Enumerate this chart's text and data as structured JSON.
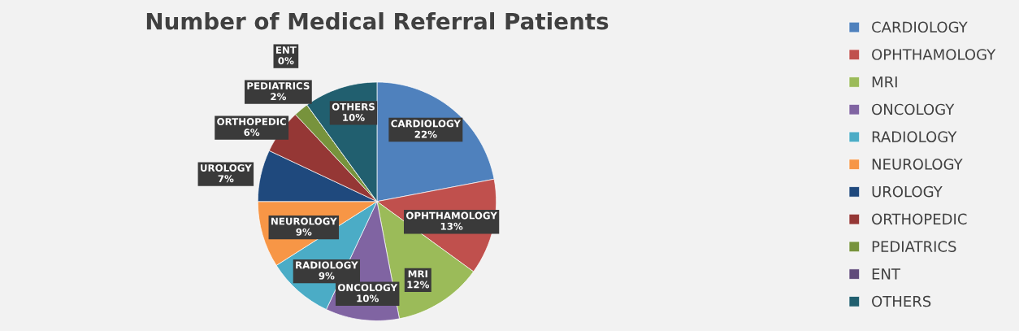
{
  "chart_data": {
    "type": "pie",
    "title": "Number of Medical Referral Patients",
    "categories": [
      "CARDIOLOGY",
      "OPHTHAMOLOGY",
      "MRI",
      "ONCOLOGY",
      "RADIOLOGY",
      "NEUROLOGY",
      "UROLOGY",
      "ORTHOPEDIC",
      "PEDIATRICS",
      "ENT",
      "OTHERS"
    ],
    "values": [
      22,
      13,
      12,
      10,
      9,
      9,
      7,
      6,
      2,
      0,
      10
    ],
    "colors": [
      "#4f81bd",
      "#c0504d",
      "#9bbb59",
      "#8064a2",
      "#4bacc6",
      "#f79646",
      "#1f497d",
      "#953735",
      "#77933c",
      "#604a7b",
      "#215f6f"
    ],
    "value_labels": [
      "22%",
      "13%",
      "12%",
      "10%",
      "9%",
      "9%",
      "7%",
      "6%",
      "2%",
      "0%",
      "10%"
    ],
    "legend": "right"
  }
}
